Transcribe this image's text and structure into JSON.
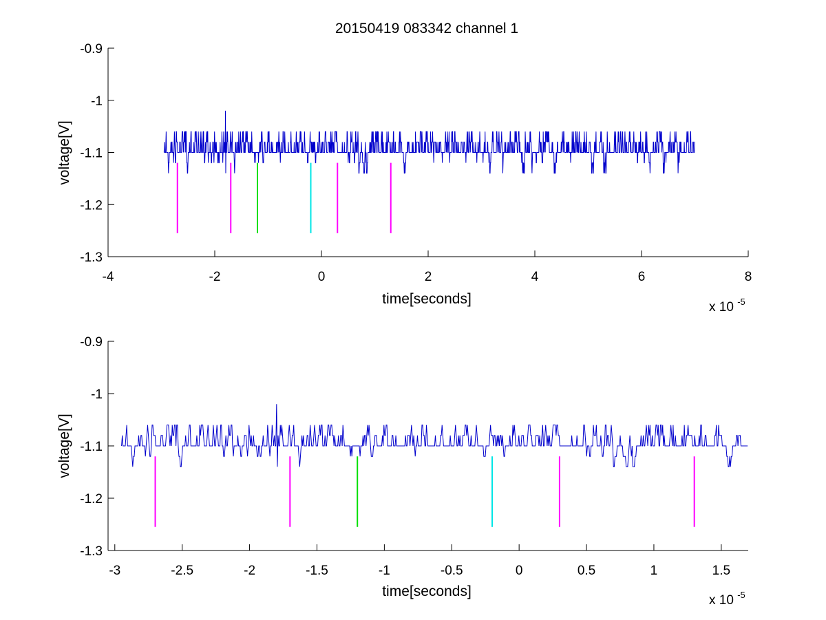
{
  "colors": {
    "signal": "#0000cc",
    "magenta": "#ff00ff",
    "green": "#00e000",
    "cyan": "#00e6e6",
    "axis": "#000000",
    "background": "#ffffff"
  },
  "chart_data": [
    {
      "type": "line",
      "title": "20150419 083342 channel 1",
      "xlabel": "time[seconds]",
      "ylabel": "voltage[V]",
      "x_exponent_base": "x 10",
      "x_exponent_power": "-5",
      "xlim": [
        -4,
        8
      ],
      "ylim": [
        -1.3,
        -0.9
      ],
      "xticks": [
        -4,
        -2,
        0,
        2,
        4,
        6,
        8
      ],
      "xtick_labels": [
        "-4",
        "-2",
        "0",
        "2",
        "4",
        "6",
        "8"
      ],
      "yticks": [
        -0.9,
        -1.0,
        -1.1,
        -1.2,
        -1.3
      ],
      "ytick_labels": [
        "-0.9",
        "-1",
        "-1.1",
        "-1.2",
        "-1.3"
      ],
      "grid": false,
      "series": [
        {
          "kind": "signal",
          "color": "signal",
          "x_range": [
            -2.95,
            7.0
          ],
          "levels": [
            -1.06,
            -1.08,
            -1.1,
            -1.12,
            -1.14
          ],
          "baseline": -1.1,
          "spike": {
            "x": -1.8,
            "y": -1.02
          }
        }
      ],
      "markers": [
        {
          "x": -2.7,
          "y_top": -1.12,
          "y_bottom": -1.255,
          "color": "magenta"
        },
        {
          "x": -1.7,
          "y_top": -1.12,
          "y_bottom": -1.255,
          "color": "magenta"
        },
        {
          "x": -1.2,
          "y_top": -1.12,
          "y_bottom": -1.255,
          "color": "green"
        },
        {
          "x": -0.2,
          "y_top": -1.12,
          "y_bottom": -1.255,
          "color": "cyan"
        },
        {
          "x": 0.3,
          "y_top": -1.12,
          "y_bottom": -1.255,
          "color": "magenta"
        },
        {
          "x": 1.3,
          "y_top": -1.12,
          "y_bottom": -1.255,
          "color": "magenta"
        }
      ]
    },
    {
      "type": "line",
      "title": "",
      "xlabel": "time[seconds]",
      "ylabel": "voltage[V]",
      "x_exponent_base": "x 10",
      "x_exponent_power": "-5",
      "xlim": [
        -3.05,
        1.7
      ],
      "ylim": [
        -1.3,
        -0.9
      ],
      "xticks": [
        -3,
        -2.5,
        -2,
        -1.5,
        -1,
        -0.5,
        0,
        0.5,
        1,
        1.5
      ],
      "xtick_labels": [
        "-3",
        "-2.5",
        "-2",
        "-1.5",
        "-1",
        "-0.5",
        "0",
        "0.5",
        "1",
        "1.5"
      ],
      "yticks": [
        -0.9,
        -1.0,
        -1.1,
        -1.2,
        -1.3
      ],
      "ytick_labels": [
        "-0.9",
        "-1",
        "-1.1",
        "-1.2",
        "-1.3"
      ],
      "grid": false,
      "series": [
        {
          "kind": "signal",
          "color": "signal",
          "x_range": [
            -2.95,
            1.7
          ],
          "levels": [
            -1.06,
            -1.08,
            -1.1,
            -1.12,
            -1.14
          ],
          "baseline": -1.1,
          "spike": {
            "x": -1.8,
            "y": -1.02
          }
        }
      ],
      "markers": [
        {
          "x": -2.7,
          "y_top": -1.12,
          "y_bottom": -1.255,
          "color": "magenta"
        },
        {
          "x": -1.7,
          "y_top": -1.12,
          "y_bottom": -1.255,
          "color": "magenta"
        },
        {
          "x": -1.2,
          "y_top": -1.12,
          "y_bottom": -1.255,
          "color": "green"
        },
        {
          "x": -0.2,
          "y_top": -1.12,
          "y_bottom": -1.255,
          "color": "cyan"
        },
        {
          "x": 0.3,
          "y_top": -1.12,
          "y_bottom": -1.255,
          "color": "magenta"
        },
        {
          "x": 1.3,
          "y_top": -1.12,
          "y_bottom": -1.255,
          "color": "magenta"
        }
      ]
    }
  ]
}
